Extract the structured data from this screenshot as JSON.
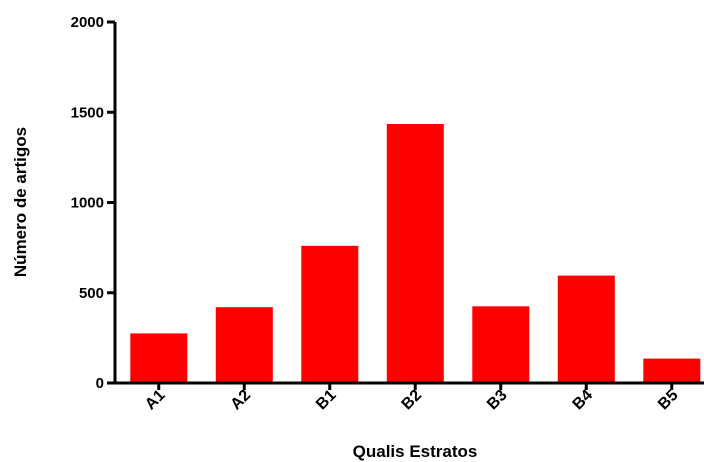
{
  "chart_data": {
    "type": "bar",
    "categories": [
      "A1",
      "A2",
      "B1",
      "B2",
      "B3",
      "B4",
      "B5"
    ],
    "values": [
      275,
      420,
      760,
      1435,
      425,
      595,
      135
    ],
    "xlabel": "Qualis Estratos",
    "ylabel": "Número de artigos",
    "ylim": [
      0,
      2000
    ],
    "yticks": [
      0,
      500,
      1000,
      1500,
      2000
    ],
    "bar_color": "#ff0000",
    "grid": false,
    "legend": "none"
  }
}
